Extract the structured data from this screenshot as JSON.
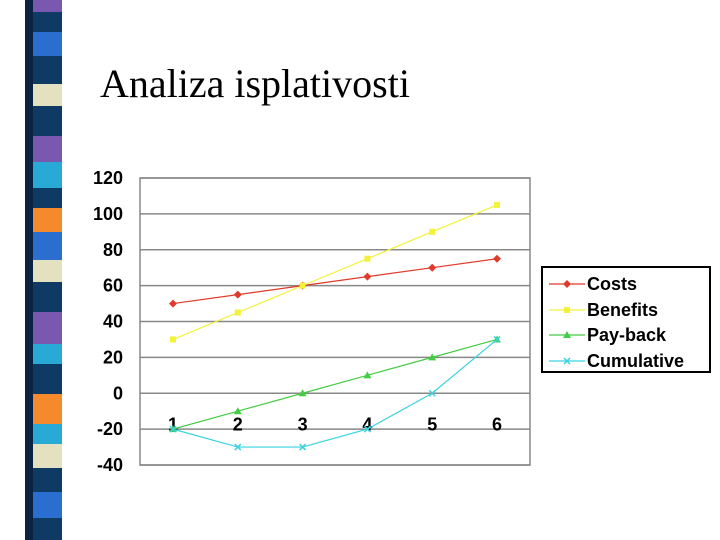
{
  "title": "Analiza isplativosti",
  "stripe_colors": [
    "#7b58b0",
    "#0f3a64",
    "#e4e1c0",
    "#2a6fd0",
    "#0f3a64",
    "#29a9d6",
    "#f48a2c"
  ],
  "chart_data": {
    "type": "line",
    "title": "",
    "xlabel": "",
    "ylabel": "",
    "categories": [
      "1",
      "2",
      "3",
      "4",
      "5",
      "6"
    ],
    "ylim": [
      -40,
      120
    ],
    "yticks": [
      120,
      100,
      80,
      60,
      40,
      20,
      0,
      -20,
      -40
    ],
    "grid": true,
    "legend_position": "right",
    "series": [
      {
        "name": "Costs",
        "values": [
          50,
          55,
          60,
          65,
          70,
          75
        ],
        "color": "#e03a2a",
        "marker": "diamond"
      },
      {
        "name": "Benefits",
        "values": [
          30,
          45,
          60,
          75,
          90,
          105
        ],
        "color": "#f2f23a",
        "marker": "square"
      },
      {
        "name": "Pay-back",
        "values": [
          -20,
          -10,
          0,
          10,
          20,
          30
        ],
        "color": "#44cc44",
        "marker": "triangle"
      },
      {
        "name": "Cumulative",
        "values": [
          -20,
          -30,
          -30,
          -20,
          0,
          30
        ],
        "color": "#3ad2e0",
        "marker": "x"
      }
    ]
  }
}
